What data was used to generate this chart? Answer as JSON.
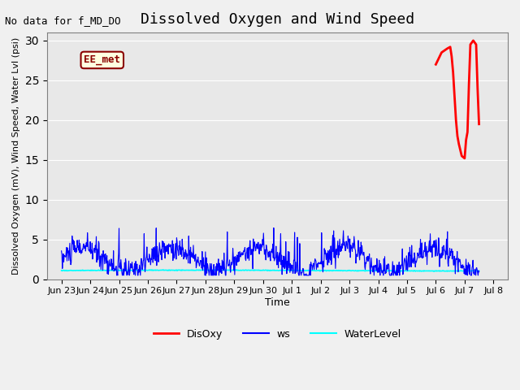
{
  "title": "Dissolved Oxygen and Wind Speed",
  "no_data_label": "No data for f_MD_DO",
  "station_label": "EE_met",
  "ylabel": "Dissolved Oxygen (mV), Wind Speed, Water Lvl (psi)",
  "xlabel": "Time",
  "ylim": [
    0,
    31
  ],
  "yticks": [
    0,
    5,
    10,
    15,
    20,
    25,
    30
  ],
  "bg_color": "#e8e8e8",
  "fig_color": "#f0f0f0",
  "legend_items": [
    "DisOxy",
    "ws",
    "WaterLevel"
  ],
  "legend_colors": [
    "red",
    "blue",
    "cyan"
  ]
}
